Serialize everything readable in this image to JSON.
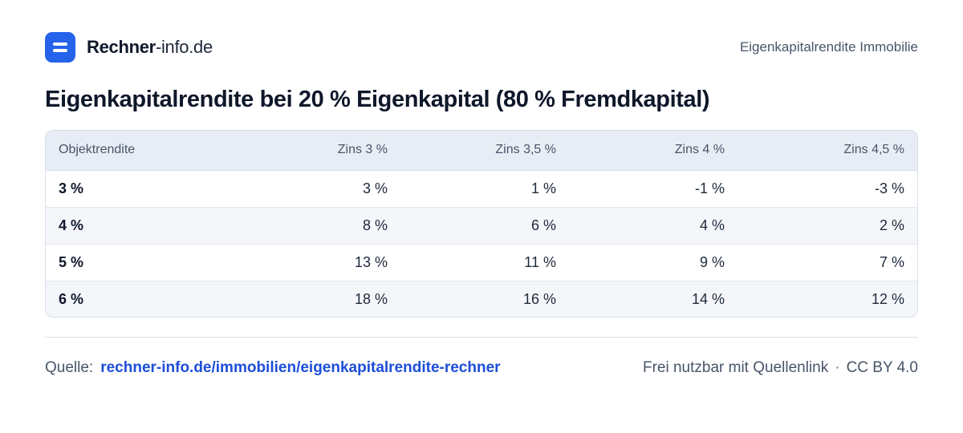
{
  "header": {
    "brand_strong": "Rechner",
    "brand_light": "-info.de",
    "logo_icon": "equals-icon",
    "page_topic": "Eigenkapitalrendite Immobilie"
  },
  "title": "Eigenkapitalrendite bei 20 % Eigenkapital (80 % Fremdkapital)",
  "table": {
    "columns": [
      "Objektrendite",
      "Zins 3 %",
      "Zins 3,5 %",
      "Zins 4 %",
      "Zins 4,5 %"
    ],
    "rows": [
      [
        "3 %",
        "3 %",
        "1 %",
        "-1 %",
        "-3 %"
      ],
      [
        "4 %",
        "8 %",
        "6 %",
        "4 %",
        "2 %"
      ],
      [
        "5 %",
        "13 %",
        "11 %",
        "9 %",
        "7 %"
      ],
      [
        "6 %",
        "18 %",
        "16 %",
        "14 %",
        "12 %"
      ]
    ]
  },
  "footer": {
    "source_label": "Quelle:",
    "source_link": "rechner-info.de/immobilien/eigenkapitalrendite-rechner",
    "license_text": "Frei nutzbar mit Quellenlink",
    "separator": "·",
    "license_name": "CC BY 4.0"
  },
  "colors": {
    "accent": "#2563eb",
    "link": "#1d4ed8",
    "header_row_bg": "#e8edf5",
    "text_dark": "#0f172a",
    "text_muted": "#475569"
  }
}
